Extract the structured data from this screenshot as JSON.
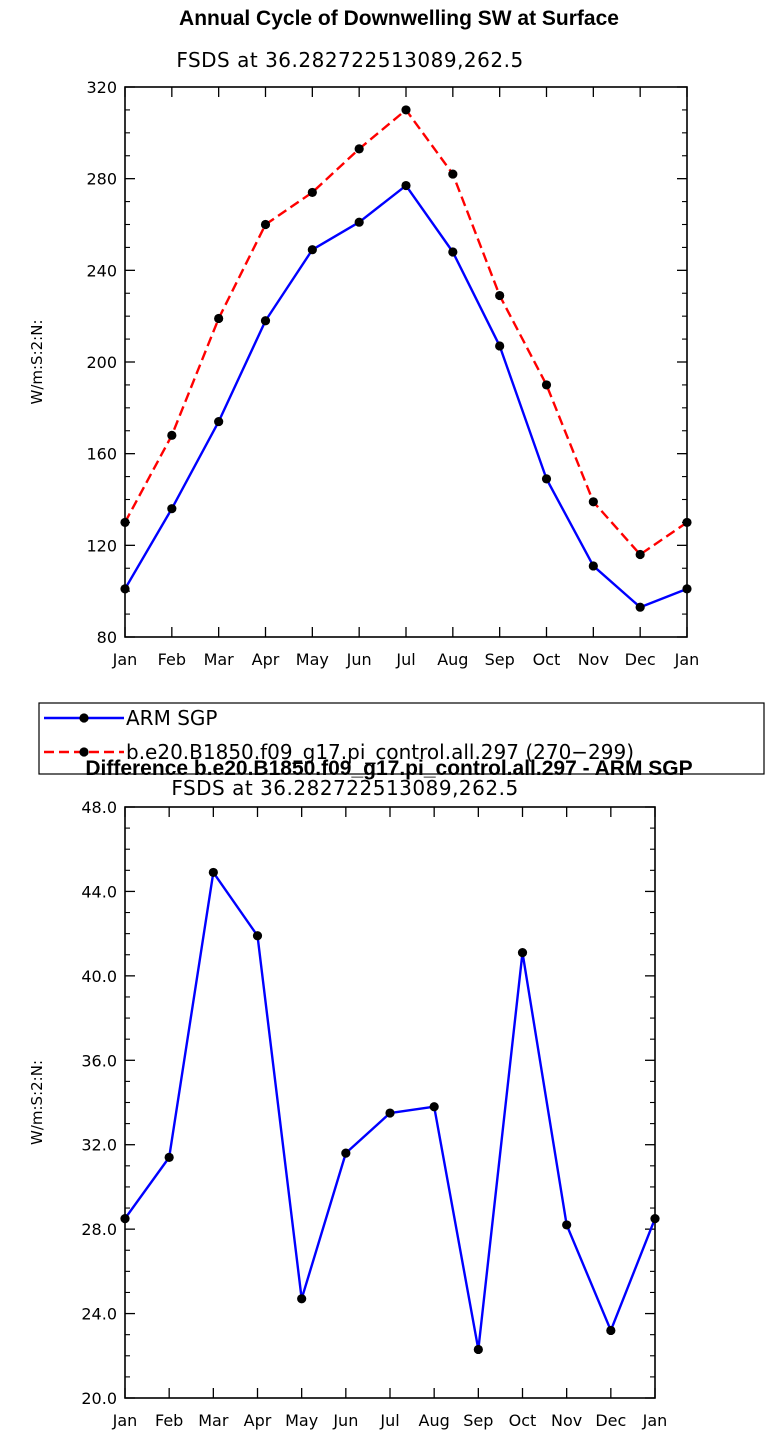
{
  "chart_data": [
    {
      "type": "line",
      "title": "Annual Cycle of Downwelling SW at Surface",
      "subtitle": "FSDS at 36.282722513089,262.5",
      "ylabel": "W/m:S:2:N:",
      "xlabel": "",
      "ylim": [
        80,
        320
      ],
      "yticks": [
        80,
        120,
        160,
        200,
        240,
        280,
        320
      ],
      "ytick_labels": [
        "80",
        "120",
        "160",
        "200",
        "240",
        "280",
        "320"
      ],
      "categories": [
        "Jan",
        "Feb",
        "Mar",
        "Apr",
        "May",
        "Jun",
        "Jul",
        "Aug",
        "Sep",
        "Oct",
        "Nov",
        "Dec",
        "Jan"
      ],
      "series": [
        {
          "name": "ARM SGP",
          "color": "#0000ff",
          "dash": "solid",
          "values": [
            101,
            136,
            174,
            218,
            249,
            261,
            277,
            248,
            207,
            149,
            111,
            93,
            101
          ]
        },
        {
          "name": "b.e20.B1850.f09_g17.pi_control.all.297 (270−299)",
          "color": "#ff0000",
          "dash": "dashed",
          "values": [
            130,
            168,
            219,
            260,
            274,
            293,
            310,
            282,
            229,
            190,
            139,
            116,
            130
          ]
        }
      ]
    },
    {
      "type": "line",
      "title": "Difference b.e20.B1850.f09_g17.pi_control.all.297 - ARM SGP",
      "subtitle": "FSDS at 36.282722513089,262.5",
      "ylabel": "W/m:S:2:N:",
      "xlabel": "",
      "ylim": [
        20,
        48
      ],
      "yticks": [
        20,
        24,
        28,
        32,
        36,
        40,
        44,
        48
      ],
      "ytick_labels": [
        "20.0",
        "24.0",
        "28.0",
        "32.0",
        "36.0",
        "40.0",
        "44.0",
        "48.0"
      ],
      "categories": [
        "Jan",
        "Feb",
        "Mar",
        "Apr",
        "May",
        "Jun",
        "Jul",
        "Aug",
        "Sep",
        "Oct",
        "Nov",
        "Dec",
        "Jan"
      ],
      "series": [
        {
          "name": "Difference",
          "color": "#0000ff",
          "dash": "solid",
          "values": [
            28.5,
            31.4,
            44.9,
            41.9,
            24.7,
            31.6,
            33.5,
            33.8,
            22.3,
            41.1,
            28.2,
            23.2,
            28.5
          ]
        }
      ]
    }
  ]
}
